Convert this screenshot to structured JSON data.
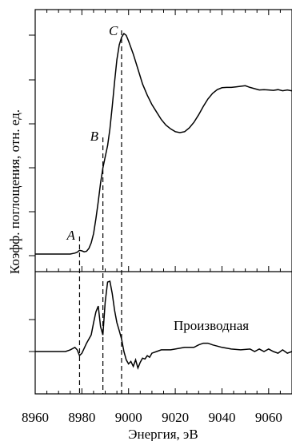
{
  "chart_data": {
    "type": "line",
    "xlabel": "Энергия, эВ",
    "ylabel": "Коэфф. поглощения, отн. ед.",
    "x_ticks": [
      8960,
      8980,
      9000,
      9020,
      9040,
      9060
    ],
    "xlim": [
      8960,
      9070
    ],
    "annotation": "Производная",
    "point_labels": [
      {
        "label": "A",
        "x": 8979
      },
      {
        "label": "B",
        "x": 8989
      },
      {
        "label": "C",
        "x": 8997
      }
    ],
    "dashed_lines_x": [
      8979,
      8989,
      8997
    ],
    "top_panel": {
      "ylim": [
        0,
        1.2
      ],
      "series": [
        {
          "x": [
            8960,
            8970,
            8975,
            8977,
            8978,
            8979,
            8980,
            8981,
            8982,
            8983,
            8984,
            8985,
            8986,
            8987,
            8988,
            8989,
            8990,
            8991,
            8992,
            8993,
            8994,
            8995,
            8996,
            8997,
            8998,
            8999,
            9000,
            9002,
            9004,
            9006,
            9008,
            9010,
            9012,
            9014,
            9016,
            9018,
            9020,
            9022,
            9024,
            9026,
            9028,
            9030,
            9032,
            9034,
            9036,
            9038,
            9040,
            9042,
            9044,
            9046,
            9048,
            9050,
            9052,
            9054,
            9056,
            9058,
            9060,
            9062,
            9064,
            9066,
            9068,
            9070
          ],
          "y": [
            0.0,
            0.0,
            0.0,
            0.005,
            0.01,
            0.02,
            0.017,
            0.012,
            0.015,
            0.03,
            0.06,
            0.11,
            0.19,
            0.28,
            0.38,
            0.46,
            0.52,
            0.58,
            0.67,
            0.79,
            0.92,
            1.04,
            1.12,
            1.16,
            1.18,
            1.17,
            1.14,
            1.07,
            0.99,
            0.91,
            0.85,
            0.8,
            0.76,
            0.72,
            0.69,
            0.67,
            0.655,
            0.65,
            0.655,
            0.675,
            0.705,
            0.745,
            0.79,
            0.83,
            0.86,
            0.88,
            0.89,
            0.892,
            0.892,
            0.895,
            0.898,
            0.901,
            0.892,
            0.885,
            0.878,
            0.88,
            0.878,
            0.876,
            0.88,
            0.874,
            0.878,
            0.873
          ]
        }
      ]
    },
    "bottom_panel": {
      "ylim": [
        -0.5,
        1.0
      ],
      "annotation": "Производная",
      "series": [
        {
          "x": [
            8960,
            8965,
            8970,
            8973,
            8975,
            8977,
            8978,
            8979,
            8980,
            8982,
            8984,
            8985,
            8986,
            8987,
            8988,
            8989,
            8990,
            8991,
            8992,
            8993,
            8994,
            8995,
            8996,
            8997,
            8998,
            8999,
            9000,
            9001,
            9002,
            9003,
            9004,
            9005,
            9006,
            9007,
            9008,
            9009,
            9010,
            9012,
            9014,
            9016,
            9018,
            9020,
            9024,
            9028,
            9030,
            9032,
            9034,
            9036,
            9040,
            9044,
            9048,
            9052,
            9054,
            9056,
            9058,
            9060,
            9062,
            9064,
            9066,
            9068,
            9070
          ],
          "y": [
            0.0,
            0.0,
            0.0,
            0.0,
            0.02,
            0.05,
            0.02,
            -0.05,
            -0.02,
            0.1,
            0.2,
            0.35,
            0.48,
            0.55,
            0.3,
            0.2,
            0.6,
            0.84,
            0.85,
            0.7,
            0.5,
            0.35,
            0.25,
            0.15,
            0.0,
            -0.1,
            -0.15,
            -0.12,
            -0.18,
            -0.1,
            -0.2,
            -0.13,
            -0.08,
            -0.09,
            -0.05,
            -0.07,
            -0.02,
            0.0,
            0.02,
            0.02,
            0.02,
            0.03,
            0.05,
            0.05,
            0.08,
            0.1,
            0.1,
            0.08,
            0.05,
            0.03,
            0.02,
            0.03,
            0.0,
            0.03,
            0.0,
            0.03,
            0.0,
            -0.02,
            0.02,
            -0.02,
            0.0
          ]
        }
      ]
    }
  }
}
